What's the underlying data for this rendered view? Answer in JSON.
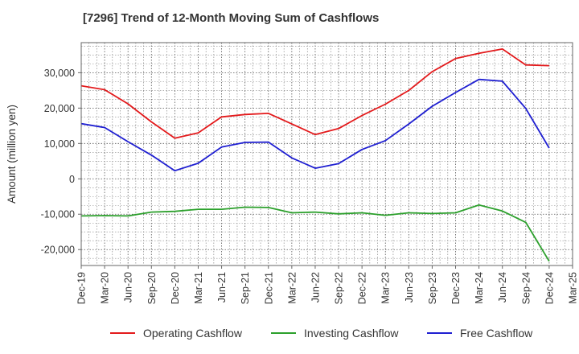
{
  "chart_data": {
    "type": "line",
    "title": "[7296]  Trend of 12-Month Moving Sum of Cashflows",
    "xlabel": "",
    "ylabel": "Amount (million yen)",
    "categories": [
      "Dec-19",
      "Mar-20",
      "Jun-20",
      "Sep-20",
      "Dec-20",
      "Mar-21",
      "Jun-21",
      "Sep-21",
      "Dec-21",
      "Mar-22",
      "Jun-22",
      "Sep-22",
      "Dec-22",
      "Mar-23",
      "Jun-23",
      "Sep-23",
      "Dec-23",
      "Mar-24",
      "Jun-24",
      "Sep-24",
      "Dec-24",
      "Mar-25"
    ],
    "ylim": [
      -24500,
      38500
    ],
    "yticks": [
      -20000,
      -10000,
      0,
      10000,
      20000,
      30000
    ],
    "ytick_labels": [
      "-20,000",
      "-10,000",
      "0",
      "10,000",
      "20,000",
      "30,000"
    ],
    "grid": true,
    "legend_position": "bottom",
    "series": [
      {
        "name": "Operating Cashflow",
        "color": "#e31a1c",
        "values": [
          26300,
          25200,
          21200,
          16100,
          11500,
          13000,
          17500,
          18200,
          18500,
          15500,
          12500,
          14200,
          17900,
          21100,
          25000,
          30300,
          34000,
          35500,
          36700,
          32200,
          32000,
          null
        ]
      },
      {
        "name": "Investing Cashflow",
        "color": "#2ca02c",
        "values": [
          -10500,
          -10400,
          -10500,
          -9400,
          -9200,
          -8600,
          -8600,
          -8000,
          -8100,
          -9600,
          -9400,
          -9900,
          -9600,
          -10300,
          -9600,
          -9800,
          -9600,
          -7400,
          -9100,
          -12300,
          -23300,
          null
        ]
      },
      {
        "name": "Free Cashflow",
        "color": "#1f1fd1",
        "values": [
          15600,
          14500,
          10500,
          6700,
          2300,
          4400,
          9000,
          10300,
          10400,
          5900,
          3000,
          4300,
          8300,
          10800,
          15500,
          20500,
          24400,
          28100,
          27600,
          19900,
          8700,
          null
        ]
      }
    ]
  }
}
